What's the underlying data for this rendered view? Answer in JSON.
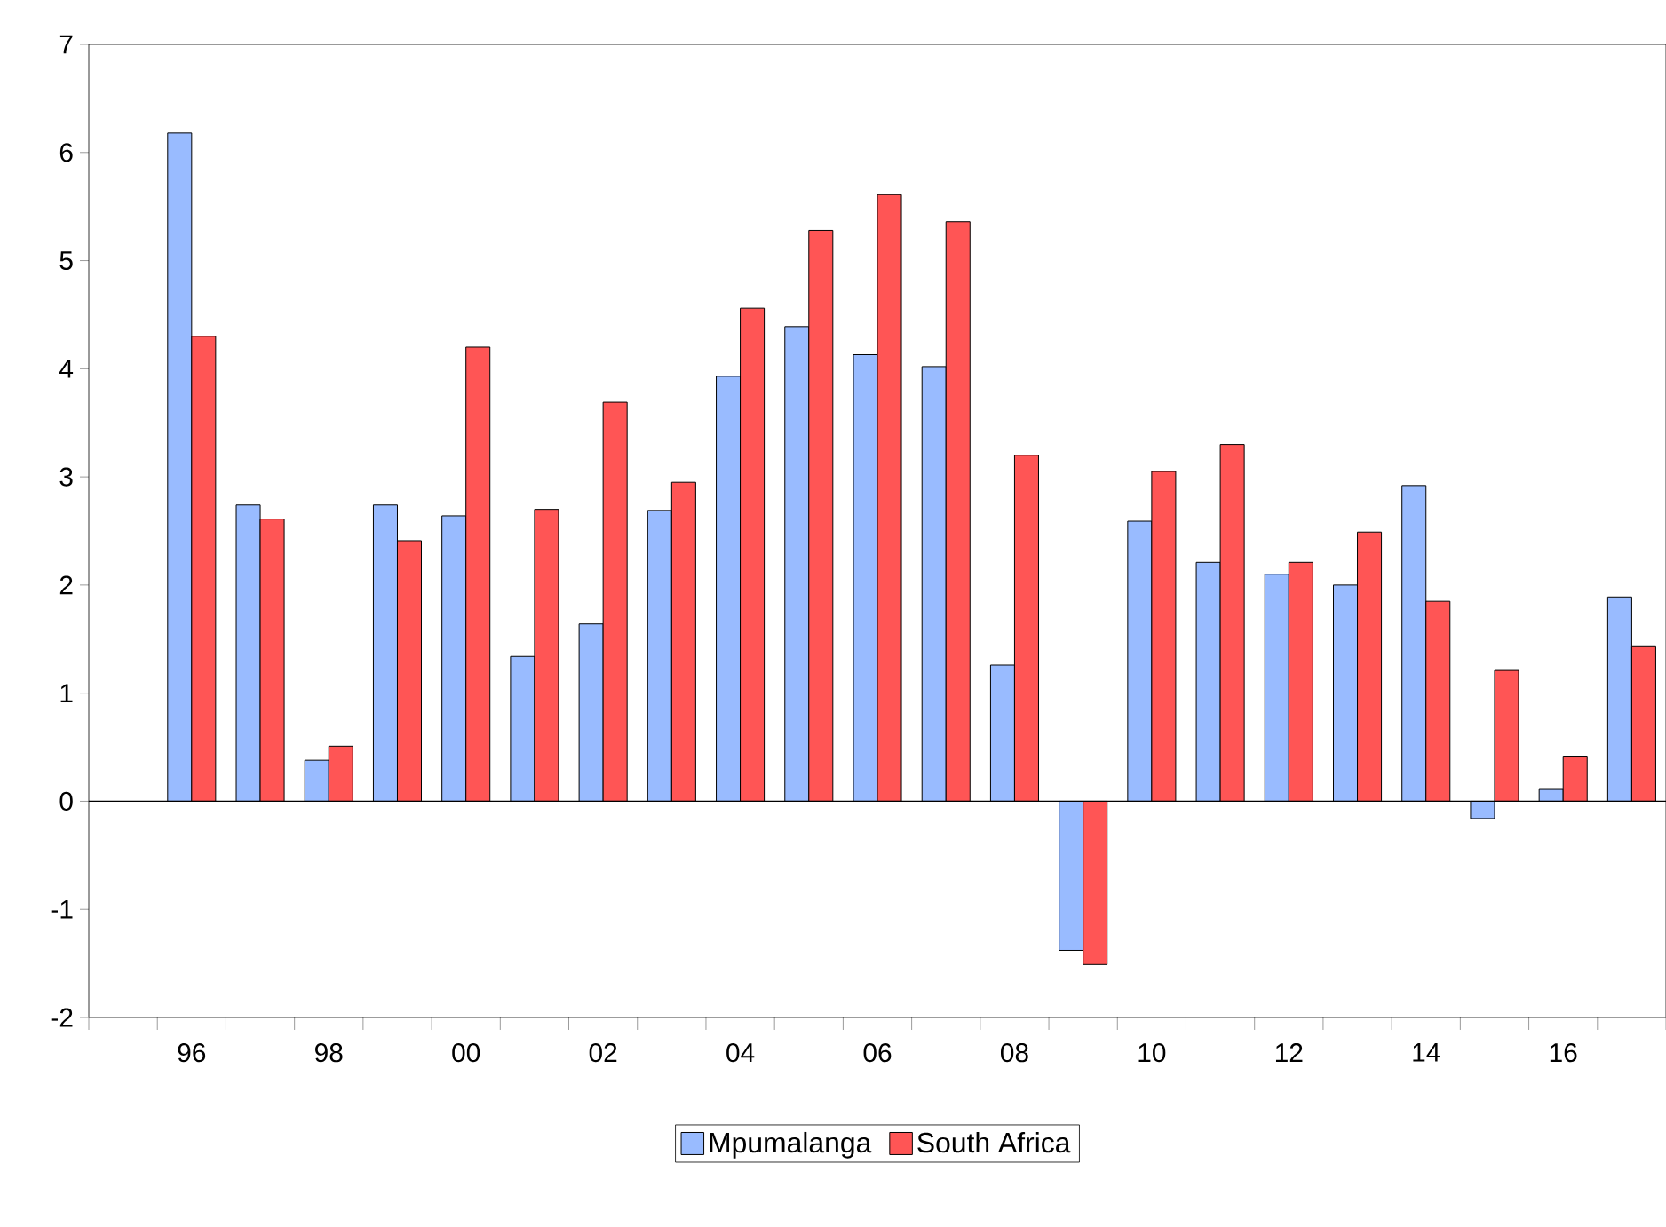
{
  "chart_data": {
    "type": "bar",
    "categories": [
      null,
      "96",
      null,
      "98",
      null,
      "00",
      null,
      "02",
      null,
      "04",
      null,
      "06",
      null,
      "08",
      null,
      "10",
      null,
      "12",
      null,
      "14",
      null,
      "16",
      null
    ],
    "series": [
      {
        "name": "Mpumalanga",
        "color": "#99bbff",
        "values": [
          null,
          6.18,
          2.74,
          0.38,
          2.74,
          2.64,
          1.34,
          1.64,
          2.69,
          3.93,
          4.39,
          4.13,
          4.02,
          1.26,
          -1.38,
          2.59,
          2.21,
          2.1,
          2.0,
          2.92,
          -0.16,
          0.11,
          1.89
        ]
      },
      {
        "name": "South Africa",
        "color": "#ff5555",
        "values": [
          null,
          4.3,
          2.61,
          0.51,
          2.41,
          4.2,
          2.7,
          3.69,
          2.95,
          4.56,
          5.28,
          5.61,
          5.36,
          3.2,
          -1.51,
          3.05,
          3.3,
          2.21,
          2.49,
          1.85,
          1.21,
          0.41,
          1.43
        ]
      }
    ],
    "ylim": [
      -2,
      7
    ],
    "yticks": [
      -2,
      -1,
      0,
      1,
      2,
      3,
      4,
      5,
      6,
      7
    ],
    "ref_lines": [
      {
        "axis": "y",
        "value": 0,
        "color": "#000000"
      }
    ],
    "legend": "bottom",
    "grid": false
  }
}
